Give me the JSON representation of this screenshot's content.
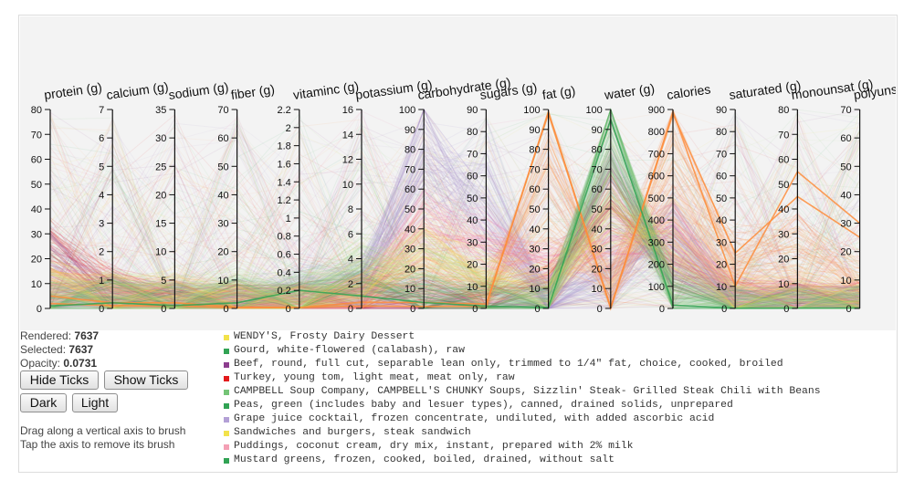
{
  "chart_data": {
    "type": "parallel-coordinates",
    "axes": [
      {
        "name": "protein (g)",
        "ticks": [
          0,
          10,
          20,
          30,
          40,
          50,
          60,
          70,
          80
        ]
      },
      {
        "name": "calcium (g)",
        "ticks": [
          0,
          1,
          2,
          3,
          4,
          5,
          6,
          7
        ]
      },
      {
        "name": "sodium (g)",
        "ticks": [
          0,
          5,
          10,
          15,
          20,
          25,
          30,
          35
        ]
      },
      {
        "name": "fiber (g)",
        "ticks": [
          0,
          10,
          20,
          30,
          40,
          50,
          60,
          70
        ]
      },
      {
        "name": "vitaminc (g)",
        "ticks": [
          0.0,
          0.2,
          0.4,
          0.6,
          0.8,
          1.0,
          1.2,
          1.4,
          1.6,
          1.8,
          2.0,
          2.2
        ]
      },
      {
        "name": "potassium (g)",
        "ticks": [
          0,
          2,
          4,
          6,
          8,
          10,
          12,
          14,
          16
        ]
      },
      {
        "name": "carbohydrate (g)",
        "ticks": [
          0,
          10,
          20,
          30,
          40,
          50,
          60,
          70,
          80,
          90,
          100
        ]
      },
      {
        "name": "sugars (g)",
        "ticks": [
          0,
          10,
          20,
          30,
          40,
          50,
          60,
          70,
          80,
          90
        ]
      },
      {
        "name": "fat (g)",
        "ticks": [
          0,
          10,
          20,
          30,
          40,
          50,
          60,
          70,
          80,
          90,
          100
        ]
      },
      {
        "name": "water (g)",
        "ticks": [
          0,
          10,
          20,
          30,
          40,
          50,
          60,
          70,
          80,
          90,
          100
        ]
      },
      {
        "name": "calories",
        "ticks": [
          0,
          100,
          200,
          300,
          400,
          500,
          600,
          700,
          800,
          900
        ]
      },
      {
        "name": "saturated (g)",
        "ticks": [
          0,
          10,
          20,
          30,
          40,
          50,
          60,
          70,
          80,
          90
        ]
      },
      {
        "name": "monounsat (g)",
        "ticks": [
          0,
          10,
          20,
          30,
          40,
          50,
          60,
          70,
          80
        ]
      },
      {
        "name": "polyunsat (g)",
        "ticks": [
          0,
          10,
          20,
          30,
          40,
          50,
          60,
          70
        ]
      }
    ],
    "groups": [
      {
        "color": "#e31a1c",
        "profile": [
          28,
          0.6,
          1.5,
          2,
          0.05,
          1,
          3,
          2,
          10,
          55,
          200,
          4,
          4,
          2
        ]
      },
      {
        "color": "#8c3d8e",
        "profile": [
          22,
          0.3,
          1,
          1,
          0.02,
          1,
          6,
          3,
          5,
          65,
          150,
          2,
          2,
          1
        ]
      },
      {
        "color": "#9b7fc4",
        "profile": [
          4,
          0.4,
          1,
          3,
          0.1,
          2,
          80,
          40,
          3,
          12,
          380,
          1,
          1,
          1
        ]
      },
      {
        "color": "#b3a0d6",
        "profile": [
          2,
          0.2,
          0.5,
          2,
          0.3,
          2,
          70,
          60,
          1,
          25,
          300,
          0.5,
          0.5,
          0.5
        ]
      },
      {
        "color": "#fd8d3c",
        "profile": [
          8,
          0.5,
          1.5,
          2,
          0.02,
          1,
          20,
          8,
          70,
          10,
          650,
          25,
          25,
          12
        ]
      },
      {
        "color": "#fdae6b",
        "profile": [
          10,
          0.5,
          2,
          3,
          0.05,
          1,
          40,
          20,
          30,
          20,
          480,
          12,
          12,
          6
        ]
      },
      {
        "color": "#f768a1",
        "profile": [
          7,
          0.6,
          2,
          1,
          0.03,
          1,
          45,
          30,
          18,
          35,
          330,
          8,
          5,
          2
        ]
      },
      {
        "color": "#31a354",
        "profile": [
          3,
          0.5,
          0.5,
          3,
          0.1,
          2,
          5,
          2,
          0.5,
          90,
          30,
          0.1,
          0.1,
          0.2
        ]
      },
      {
        "color": "#74c476",
        "profile": [
          2,
          0.3,
          0.8,
          5,
          0.15,
          3,
          10,
          4,
          0.5,
          85,
          50,
          0.1,
          0.1,
          0.2
        ]
      },
      {
        "color": "#f2e24b",
        "profile": [
          12,
          0.5,
          3,
          2,
          0.04,
          2,
          30,
          15,
          12,
          45,
          270,
          5,
          5,
          3
        ]
      },
      {
        "color": "#b2df8a",
        "profile": [
          6,
          0.6,
          2,
          8,
          0.1,
          4,
          25,
          10,
          2,
          70,
          120,
          0.5,
          0.5,
          1
        ]
      }
    ],
    "highlights": [
      {
        "color": "#fd8d3c",
        "values": [
          5,
          0.2,
          1,
          0.5,
          0.01,
          0.5,
          3,
          2,
          98,
          0,
          880,
          25,
          45,
          25
        ]
      },
      {
        "color": "#fd8d3c",
        "values": [
          2,
          0.1,
          0.5,
          0.2,
          0.01,
          0.2,
          1,
          1,
          99,
          0.5,
          890,
          10,
          55,
          30
        ]
      },
      {
        "color": "#31a354",
        "values": [
          1,
          0.2,
          0.5,
          2,
          0.2,
          1,
          3,
          1,
          0.5,
          95,
          15,
          0.1,
          0.1,
          0.2
        ]
      }
    ],
    "rendered": 7637
  },
  "stats": {
    "rendered_label": "Rendered:",
    "rendered_value": "7637",
    "selected_label": "Selected:",
    "selected_value": "7637",
    "opacity_label": "Opacity:",
    "opacity_value": "0.0731"
  },
  "buttons": {
    "hide_ticks": "Hide Ticks",
    "show_ticks": "Show Ticks",
    "dark": "Dark",
    "light": "Light"
  },
  "help": {
    "line1": "Drag along a vertical axis to brush",
    "line2": "Tap the axis to remove its brush"
  },
  "legend": [
    {
      "color": "#f2e24b",
      "label": "WENDY'S, Frosty Dairy Dessert"
    },
    {
      "color": "#31a354",
      "label": "Gourd, white-flowered (calabash), raw"
    },
    {
      "color": "#8c3d8e",
      "label": "Beef, round, full cut, separable lean only, trimmed to 1/4\" fat, choice, cooked, broiled"
    },
    {
      "color": "#e31a1c",
      "label": "Turkey, young tom, light meat, meat only, raw"
    },
    {
      "color": "#74c476",
      "label": "CAMPBELL Soup Company, CAMPBELL'S CHUNKY Soups, Sizzlin' Steak- Grilled Steak Chili with Beans"
    },
    {
      "color": "#31a354",
      "label": "Peas, green (includes baby and lesuer types), canned, drained solids, unprepared"
    },
    {
      "color": "#b3a0d6",
      "label": "Grape juice cocktail, frozen concentrate, undiluted, with added ascorbic acid"
    },
    {
      "color": "#f2e24b",
      "label": "Sandwiches and burgers, steak sandwich"
    },
    {
      "color": "#f4a0b5",
      "label": "Puddings, coconut cream, dry mix, instant, prepared with 2% milk"
    },
    {
      "color": "#31a354",
      "label": "Mustard greens, frozen, cooked, boiled, drained, without salt"
    }
  ]
}
